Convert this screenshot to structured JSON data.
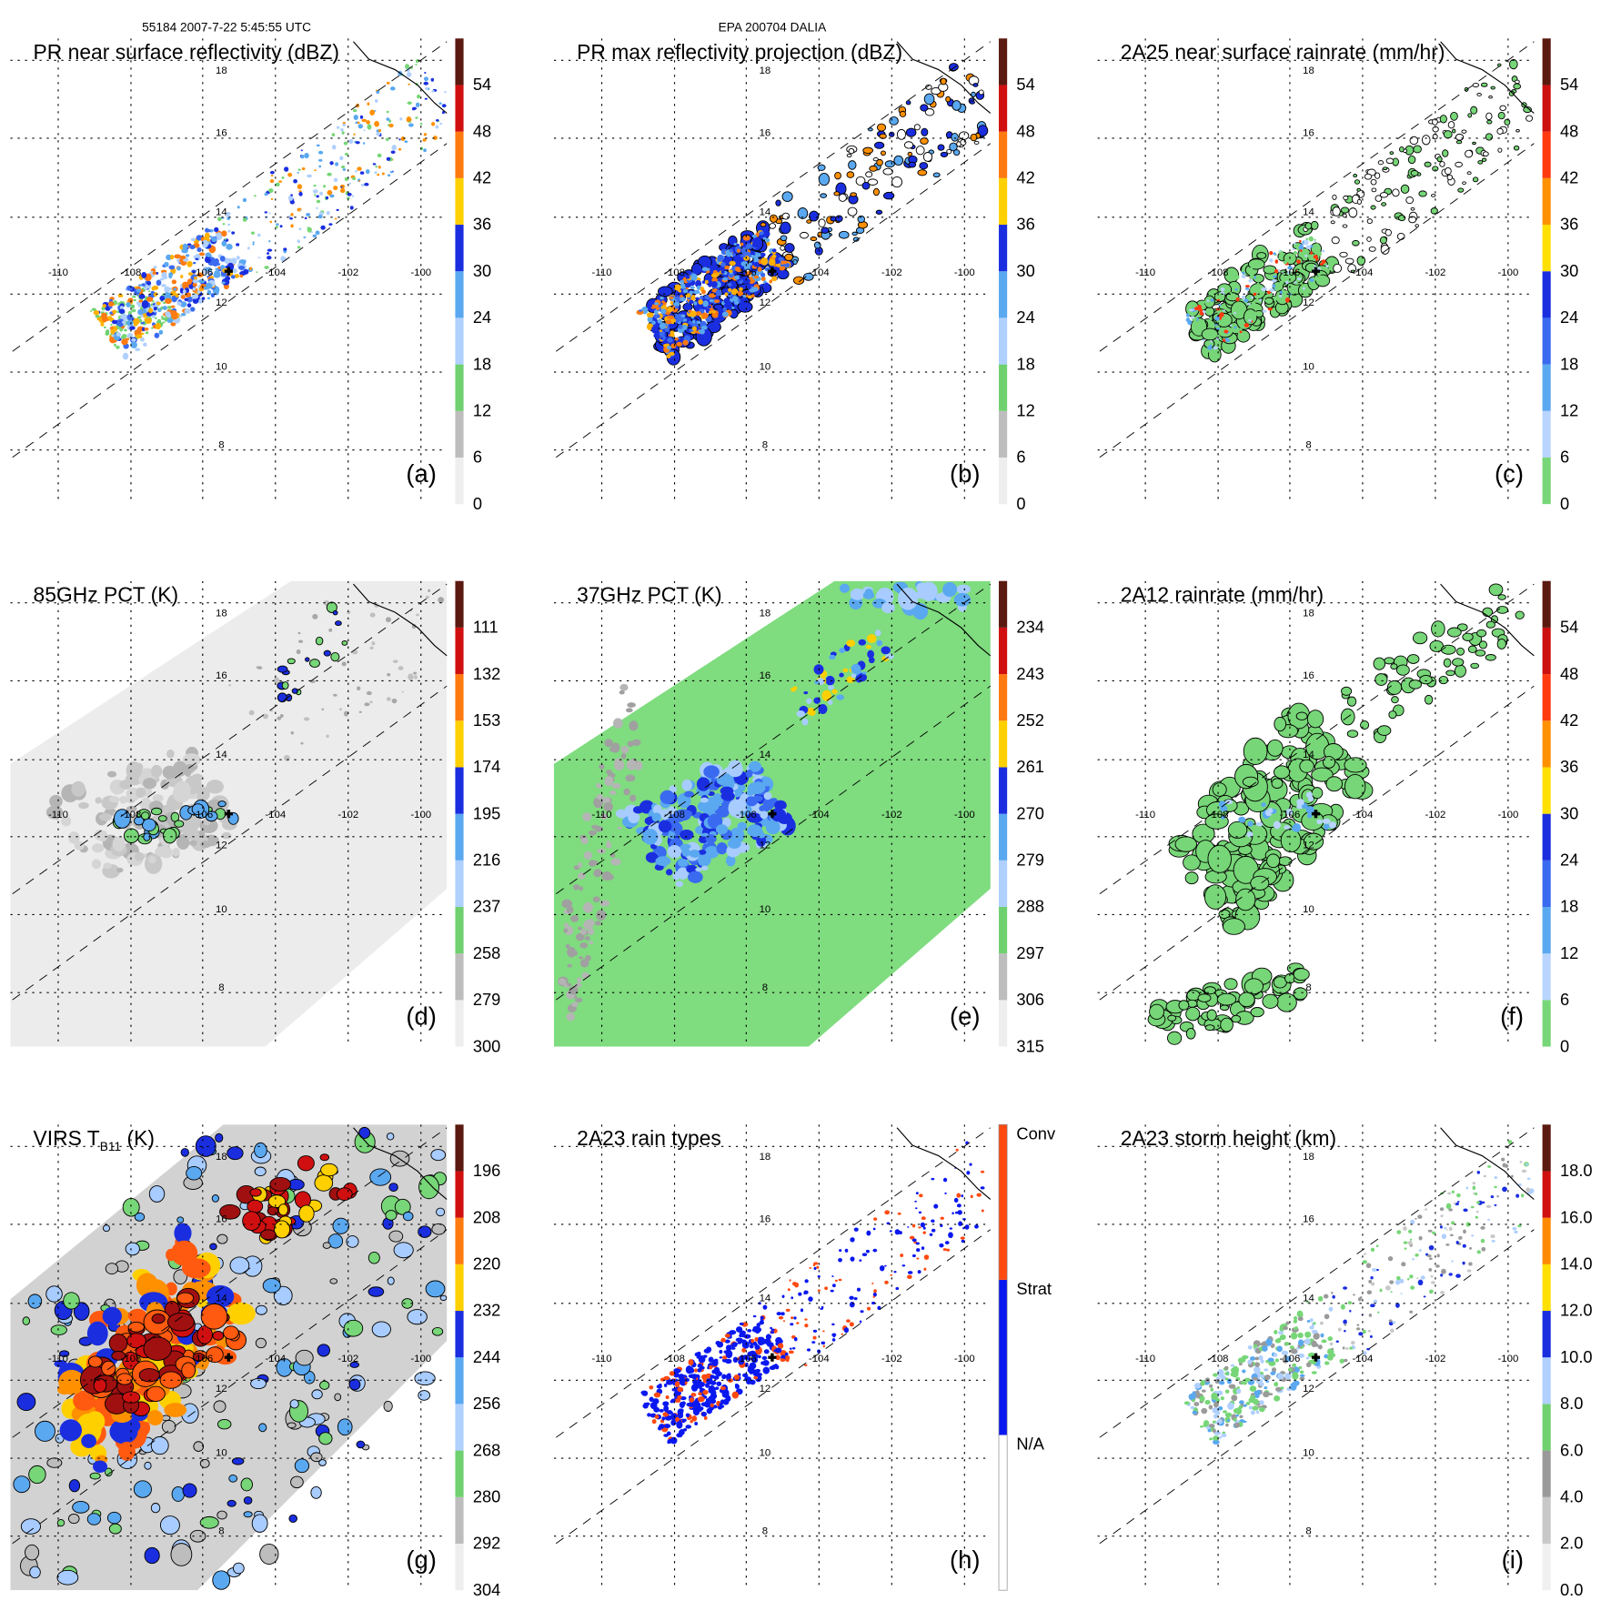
{
  "header": {
    "orbit_time": "55184 2007-7-22 5:45:55 UTC",
    "storm": "EPA 200704 DALIA"
  },
  "axes": {
    "lon_labels": [
      "-110",
      "-108",
      "-106",
      "-104",
      "-102",
      "-100"
    ],
    "lat_labels": [
      "18",
      "16",
      "14",
      "12",
      "10",
      "8"
    ]
  },
  "chart_data": {
    "type": "heatmap",
    "panels": [
      {
        "id": "a",
        "title": "PR near surface reflectivity (dBZ)",
        "title_sub": "",
        "title_suffix": "",
        "letter": "(a)",
        "kind": "pr_refl",
        "colorbar": {
          "labels": [
            "0",
            "6",
            "12",
            "18",
            "24",
            "30",
            "36",
            "42",
            "48",
            "54"
          ],
          "colors": [
            "#eeeeee",
            "#bdbdbd",
            "#6fd06f",
            "#b0d0ff",
            "#5aa8f0",
            "#1a2ee0",
            "#ffd000",
            "#ff7a10",
            "#d01010",
            "#5a1a10"
          ]
        }
      },
      {
        "id": "b",
        "title": "PR max reflectivity projection (dBZ)",
        "title_sub": "",
        "title_suffix": "",
        "letter": "(b)",
        "kind": "pr_max",
        "colorbar": {
          "labels": [
            "0",
            "6",
            "12",
            "18",
            "24",
            "30",
            "36",
            "42",
            "48",
            "54"
          ],
          "colors": [
            "#eeeeee",
            "#bdbdbd",
            "#6fd06f",
            "#b0d0ff",
            "#5aa8f0",
            "#1a2ee0",
            "#ffd000",
            "#ff7a10",
            "#d01010",
            "#5a1a10"
          ]
        }
      },
      {
        "id": "c",
        "title": "2A25 near surface rainrate (mm/hr)",
        "title_sub": "",
        "title_suffix": "",
        "letter": "(c)",
        "kind": "pr_rain",
        "colorbar": {
          "labels": [
            "0",
            "6",
            "12",
            "18",
            "24",
            "30",
            "36",
            "42",
            "48",
            "54"
          ],
          "colors": [
            "#77d677",
            "#b8d4ff",
            "#5aa8f0",
            "#3a6af0",
            "#1a2ee0",
            "#ffe000",
            "#ff9000",
            "#ff3a10",
            "#cc1010",
            "#5a1a10"
          ]
        }
      },
      {
        "id": "d",
        "title": "85GHz PCT (K)",
        "title_sub": "",
        "title_suffix": "",
        "letter": "(d)",
        "kind": "pct85",
        "colorbar": {
          "labels": [
            "300",
            "279",
            "258",
            "237",
            "216",
            "195",
            "174",
            "153",
            "132",
            "111"
          ],
          "colors": [
            "#eeeeee",
            "#bdbdbd",
            "#6fd06f",
            "#b0d0ff",
            "#5aa8f0",
            "#1a2ee0",
            "#ffd000",
            "#ff7a10",
            "#d01010",
            "#5a1a10"
          ]
        }
      },
      {
        "id": "e",
        "title": "37GHz PCT (K)",
        "title_sub": "",
        "title_suffix": "",
        "letter": "(e)",
        "kind": "pct37",
        "colorbar": {
          "labels": [
            "315",
            "306",
            "297",
            "288",
            "279",
            "270",
            "261",
            "252",
            "243",
            "234"
          ],
          "colors": [
            "#eeeeee",
            "#bdbdbd",
            "#6fd06f",
            "#b0d0ff",
            "#5aa8f0",
            "#1a2ee0",
            "#ffd000",
            "#ff7a10",
            "#d01010",
            "#5a1a10"
          ]
        }
      },
      {
        "id": "f",
        "title": "2A12 rainrate (mm/hr)",
        "title_sub": "",
        "title_suffix": "",
        "letter": "(f)",
        "kind": "tmi_rain",
        "colorbar": {
          "labels": [
            "0",
            "6",
            "12",
            "18",
            "24",
            "30",
            "36",
            "42",
            "48",
            "54"
          ],
          "colors": [
            "#77d677",
            "#b8d4ff",
            "#5aa8f0",
            "#3a6af0",
            "#1a2ee0",
            "#ffe000",
            "#ff9000",
            "#ff3a10",
            "#cc1010",
            "#5a1a10"
          ]
        }
      },
      {
        "id": "g",
        "title": "VIRS T",
        "title_sub": "B11",
        "title_suffix": " (K)",
        "letter": "(g)",
        "kind": "virs",
        "colorbar": {
          "labels": [
            "304",
            "292",
            "280",
            "268",
            "256",
            "244",
            "232",
            "220",
            "208",
            "196"
          ],
          "colors": [
            "#eeeeee",
            "#bdbdbd",
            "#6fd06f",
            "#b0d0ff",
            "#5aa8f0",
            "#1a2ee0",
            "#ffd000",
            "#ff7a10",
            "#d01010",
            "#5a1a10"
          ]
        }
      },
      {
        "id": "h",
        "title": "2A23 rain types",
        "title_sub": "",
        "title_suffix": "",
        "letter": "(h)",
        "kind": "raintype",
        "colorbar": {
          "labels": [
            "N/A",
            "Strat",
            "Conv"
          ],
          "colors": [
            "#ffffff",
            "#0a18f0",
            "#ff4a10"
          ],
          "categorical": true
        }
      },
      {
        "id": "i",
        "title": "2A23 storm height (km)",
        "title_sub": "",
        "title_suffix": "",
        "letter": "(i)",
        "kind": "height",
        "colorbar": {
          "labels": [
            "0.0",
            "2.0",
            "4.0",
            "6.0",
            "8.0",
            "10.0",
            "12.0",
            "14.0",
            "16.0",
            "18.0"
          ],
          "colors": [
            "#f0f0f0",
            "#c8c8c8",
            "#9a9a9a",
            "#6fd06f",
            "#b0d0ff",
            "#1a2ee0",
            "#ffe000",
            "#ff8a00",
            "#d01010",
            "#5a1a10"
          ]
        }
      }
    ]
  }
}
